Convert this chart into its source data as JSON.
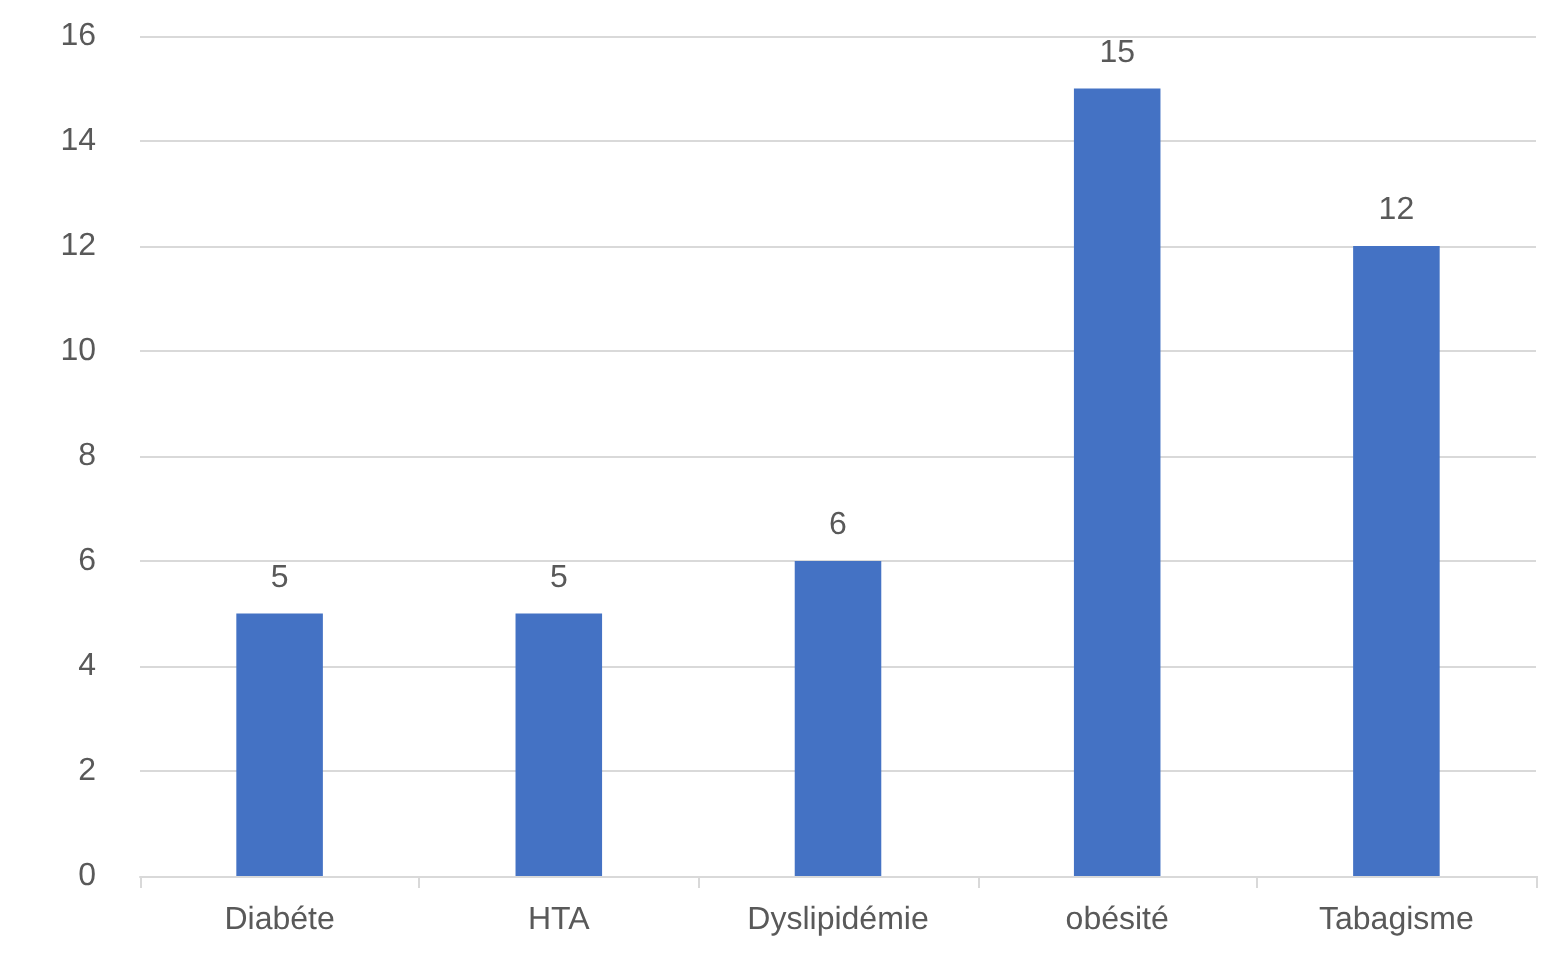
{
  "chart_data": {
    "type": "bar",
    "categories": [
      "Diabéte",
      "HTA",
      "Dyslipidémie",
      "obésité",
      "Tabagisme"
    ],
    "values": [
      5,
      5,
      6,
      15,
      12
    ],
    "color": "#4472c4",
    "ylim": [
      0,
      16
    ],
    "yticks": [
      0,
      2,
      4,
      6,
      8,
      10,
      12,
      14,
      16
    ],
    "grid": "y",
    "data_labels": true
  }
}
